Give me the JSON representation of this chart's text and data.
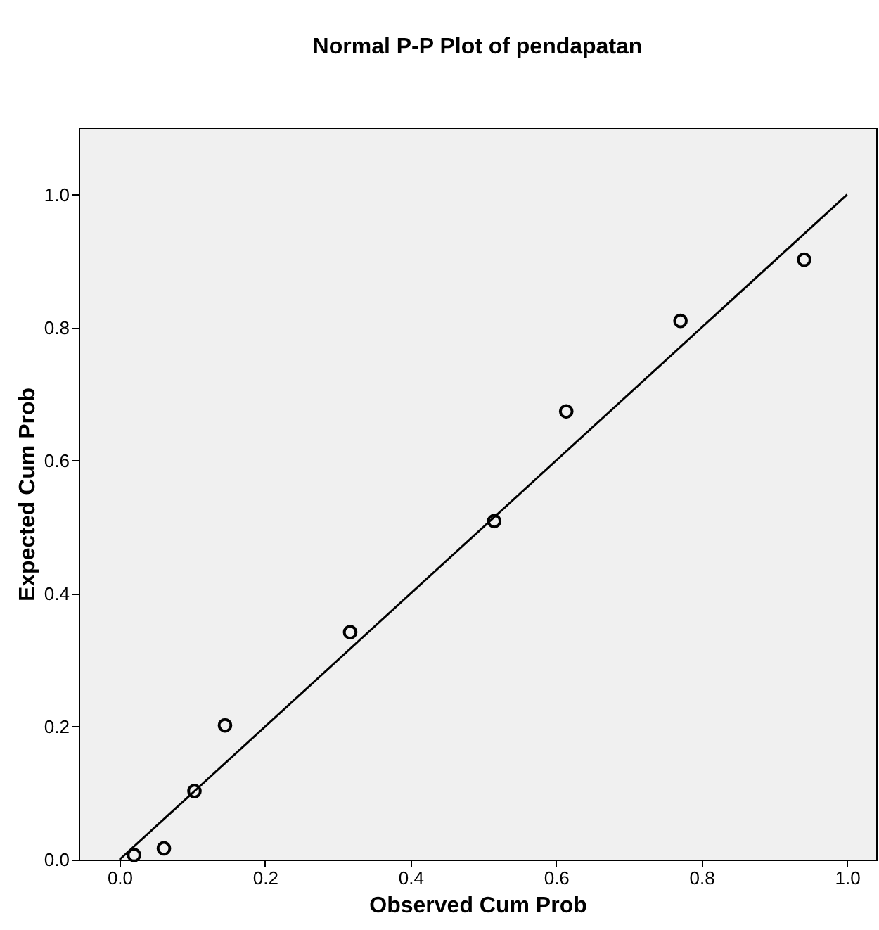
{
  "chart_data": {
    "type": "scatter",
    "title": "Normal P-P Plot of pendapatan",
    "xlabel": "Observed Cum Prob",
    "ylabel": "Expected Cum Prob",
    "x": [
      0.02,
      0.061,
      0.103,
      0.145,
      0.317,
      0.515,
      0.614,
      0.771,
      0.941
    ],
    "series": [
      {
        "color": "#000000",
        "marker": "circle",
        "values": [
          0.007,
          0.017,
          0.103,
          0.202,
          0.342,
          0.509,
          0.674,
          0.81,
          0.902
        ]
      },
      {
        "type": "line",
        "color": "#000000",
        "line_style": "solid",
        "x": [
          0,
          1
        ],
        "values": [
          0,
          1
        ]
      }
    ],
    "xlim": [
      -0.056,
      1.04
    ],
    "ylim": [
      0,
      1.1
    ],
    "xticks": [
      {
        "value": 0,
        "label": "0.0"
      },
      0.2,
      0.4,
      0.6,
      0.8,
      {
        "value": 1,
        "label": "1.0"
      }
    ],
    "yticks": [
      {
        "value": 0,
        "label": "0.0"
      },
      0.2,
      0.4,
      0.6,
      0.8,
      {
        "value": 1,
        "label": "1.0"
      }
    ],
    "grid": false
  }
}
